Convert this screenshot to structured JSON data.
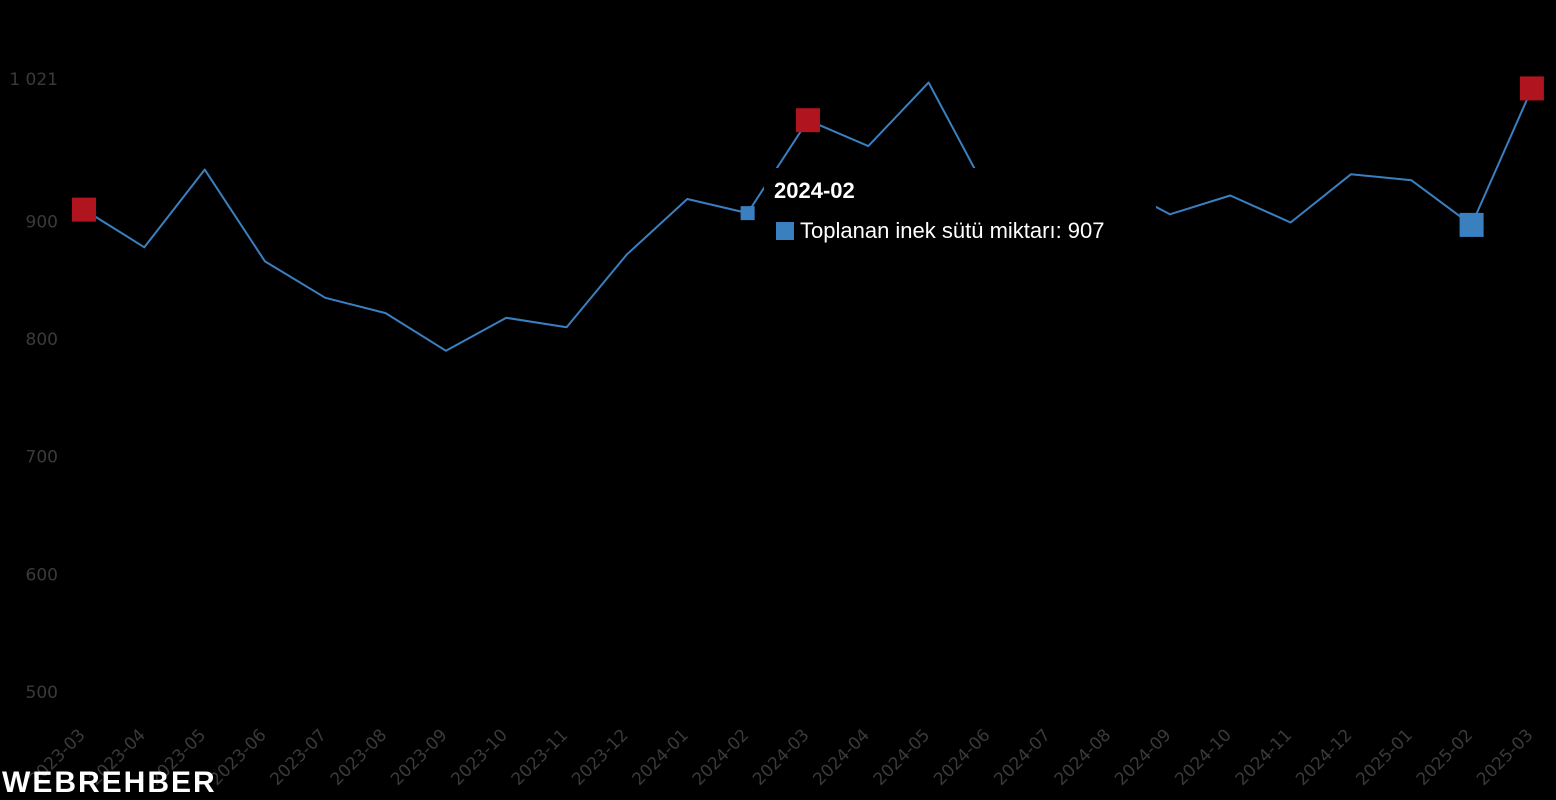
{
  "chart_data": {
    "type": "line",
    "categories": [
      "2023-03",
      "2023-04",
      "2023-05",
      "2023-06",
      "2023-07",
      "2023-08",
      "2023-09",
      "2023-10",
      "2023-11",
      "2023-12",
      "2024-01",
      "2024-02",
      "2024-03",
      "2024-04",
      "2024-05",
      "2024-06",
      "2024-07",
      "2024-08",
      "2024-09",
      "2024-10",
      "2024-11",
      "2024-12",
      "2025-01",
      "2025-02",
      "2025-03"
    ],
    "series": [
      {
        "name": "Toplanan inek sütü miktarı",
        "values": [
          910,
          878,
          944,
          866,
          835,
          822,
          790,
          818,
          810,
          872,
          919,
          907,
          986,
          964,
          1018,
          922,
          938,
          933,
          906,
          922,
          899,
          940,
          935,
          897,
          1013
        ]
      }
    ],
    "ylim": [
      500,
      1021
    ],
    "yticks": [
      500,
      600,
      700,
      800,
      900,
      1021
    ],
    "ytick_labels": [
      "500",
      "600",
      "700",
      "800",
      "900",
      "1 021"
    ],
    "highlights": [
      {
        "category": "2023-03",
        "color": "#b0141f"
      },
      {
        "category": "2024-03",
        "color": "#b0141f"
      },
      {
        "category": "2025-03",
        "color": "#b0141f"
      },
      {
        "category": "2025-02",
        "color": "#3a80c0"
      }
    ],
    "active_point": "2024-02",
    "line_color": "#3a80c0",
    "max_marker_color": "#b0141f",
    "min_marker_color": "#3a80c0"
  },
  "tooltip": {
    "title": "2024-02",
    "series_label": "Toplanan inek sütü miktarı: 907",
    "swatch_color": "#3a80c0"
  },
  "watermark": {
    "text": "WEBREHBER"
  }
}
